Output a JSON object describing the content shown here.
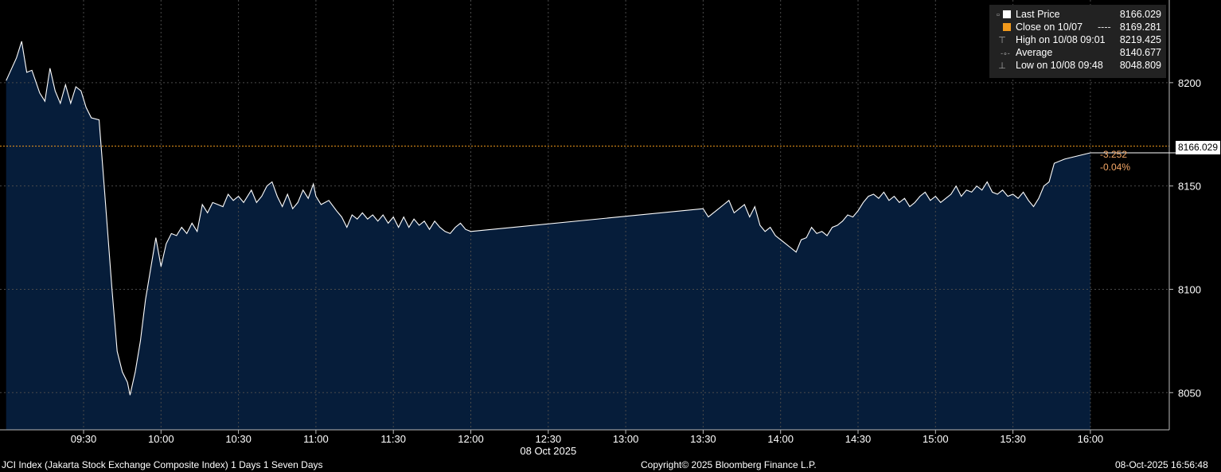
{
  "chart_data": {
    "type": "area",
    "x_labels": [
      "09:30",
      "10:00",
      "10:30",
      "11:00",
      "11:30",
      "12:00",
      "12:30",
      "13:00",
      "13:30",
      "14:00",
      "14:30",
      "15:00",
      "15:30",
      "16:00"
    ],
    "x_date_label": "08 Oct 2025",
    "y_ticks": [
      8050,
      8100,
      8150,
      8200
    ],
    "ylim": [
      8032,
      8240
    ],
    "grid": true,
    "close_reference": 8169.281,
    "series": [
      {
        "name": "Last Price",
        "color": "#ffffff",
        "fill": "#061d3a",
        "points": [
          [
            "09:00",
            8201
          ],
          [
            "09:04",
            8212
          ],
          [
            "09:06",
            8220
          ],
          [
            "09:08",
            8205
          ],
          [
            "09:10",
            8206
          ],
          [
            "09:13",
            8195
          ],
          [
            "09:15",
            8191
          ],
          [
            "09:17",
            8207
          ],
          [
            "09:19",
            8196
          ],
          [
            "09:21",
            8190
          ],
          [
            "09:23",
            8199
          ],
          [
            "09:25",
            8190
          ],
          [
            "09:27",
            8198
          ],
          [
            "09:29",
            8196
          ],
          [
            "09:31",
            8188
          ],
          [
            "09:33",
            8183
          ],
          [
            "09:36",
            8182
          ],
          [
            "09:38",
            8150
          ],
          [
            "09:41",
            8100
          ],
          [
            "09:43",
            8070
          ],
          [
            "09:45",
            8060
          ],
          [
            "09:47",
            8055
          ],
          [
            "09:48",
            8048.809
          ],
          [
            "09:50",
            8060
          ],
          [
            "09:52",
            8075
          ],
          [
            "09:54",
            8095
          ],
          [
            "09:56",
            8110
          ],
          [
            "09:58",
            8125
          ],
          [
            "10:00",
            8111
          ],
          [
            "10:02",
            8122
          ],
          [
            "10:04",
            8127
          ],
          [
            "10:06",
            8126
          ],
          [
            "10:08",
            8130
          ],
          [
            "10:10",
            8127
          ],
          [
            "10:12",
            8132
          ],
          [
            "10:14",
            8128
          ],
          [
            "10:16",
            8141
          ],
          [
            "10:18",
            8137
          ],
          [
            "10:20",
            8142
          ],
          [
            "10:22",
            8141
          ],
          [
            "10:24",
            8140
          ],
          [
            "10:26",
            8146
          ],
          [
            "10:28",
            8143
          ],
          [
            "10:30",
            8145
          ],
          [
            "10:32",
            8142
          ],
          [
            "10:35",
            8148
          ],
          [
            "10:37",
            8142
          ],
          [
            "10:39",
            8145
          ],
          [
            "10:41",
            8150
          ],
          [
            "10:43",
            8152
          ],
          [
            "10:45",
            8145
          ],
          [
            "10:47",
            8140
          ],
          [
            "10:49",
            8146
          ],
          [
            "10:51",
            8139
          ],
          [
            "10:53",
            8142
          ],
          [
            "10:55",
            8148
          ],
          [
            "10:57",
            8144
          ],
          [
            "10:59",
            8151
          ],
          [
            "11:00",
            8145
          ],
          [
            "11:02",
            8141
          ],
          [
            "11:05",
            8143
          ],
          [
            "11:08",
            8138
          ],
          [
            "11:10",
            8135
          ],
          [
            "11:12",
            8130
          ],
          [
            "11:14",
            8136
          ],
          [
            "11:16",
            8134
          ],
          [
            "11:18",
            8137
          ],
          [
            "11:20",
            8134
          ],
          [
            "11:22",
            8136
          ],
          [
            "11:24",
            8133
          ],
          [
            "11:26",
            8136
          ],
          [
            "11:28",
            8132
          ],
          [
            "11:30",
            8135
          ],
          [
            "11:32",
            8130
          ],
          [
            "11:34",
            8135
          ],
          [
            "11:36",
            8130
          ],
          [
            "11:38",
            8134
          ],
          [
            "11:40",
            8131
          ],
          [
            "11:42",
            8133
          ],
          [
            "11:44",
            8129
          ],
          [
            "11:46",
            8133
          ],
          [
            "11:48",
            8130
          ],
          [
            "11:50",
            8128
          ],
          [
            "11:52",
            8127
          ],
          [
            "11:54",
            8130
          ],
          [
            "11:56",
            8132
          ],
          [
            "11:58",
            8129
          ],
          [
            "12:00",
            8128
          ],
          [
            "13:30",
            8139
          ],
          [
            "13:32",
            8135
          ],
          [
            "13:35",
            8138
          ],
          [
            "13:38",
            8141
          ],
          [
            "13:40",
            8143
          ],
          [
            "13:42",
            8137
          ],
          [
            "13:44",
            8139
          ],
          [
            "13:46",
            8141
          ],
          [
            "13:48",
            8135
          ],
          [
            "13:50",
            8140
          ],
          [
            "13:52",
            8131
          ],
          [
            "13:54",
            8128
          ],
          [
            "13:56",
            8130
          ],
          [
            "13:58",
            8126
          ],
          [
            "14:00",
            8124
          ],
          [
            "14:02",
            8122
          ],
          [
            "14:04",
            8120
          ],
          [
            "14:06",
            8118
          ],
          [
            "14:08",
            8124
          ],
          [
            "14:10",
            8125
          ],
          [
            "14:12",
            8130
          ],
          [
            "14:14",
            8127
          ],
          [
            "14:16",
            8128
          ],
          [
            "14:18",
            8126
          ],
          [
            "14:20",
            8130
          ],
          [
            "14:22",
            8131
          ],
          [
            "14:24",
            8133
          ],
          [
            "14:26",
            8136
          ],
          [
            "14:28",
            8135
          ],
          [
            "14:30",
            8138
          ],
          [
            "14:32",
            8142
          ],
          [
            "14:34",
            8145
          ],
          [
            "14:36",
            8146
          ],
          [
            "14:38",
            8144
          ],
          [
            "14:40",
            8147
          ],
          [
            "14:42",
            8143
          ],
          [
            "14:44",
            8145
          ],
          [
            "14:46",
            8142
          ],
          [
            "14:48",
            8144
          ],
          [
            "14:50",
            8140
          ],
          [
            "14:52",
            8142
          ],
          [
            "14:54",
            8145
          ],
          [
            "14:56",
            8147
          ],
          [
            "14:58",
            8143
          ],
          [
            "15:00",
            8145
          ],
          [
            "15:02",
            8142
          ],
          [
            "15:04",
            8144
          ],
          [
            "15:06",
            8146
          ],
          [
            "15:08",
            8150
          ],
          [
            "15:10",
            8145
          ],
          [
            "15:12",
            8148
          ],
          [
            "15:14",
            8147
          ],
          [
            "15:16",
            8150
          ],
          [
            "15:18",
            8148
          ],
          [
            "15:20",
            8152
          ],
          [
            "15:22",
            8147
          ],
          [
            "15:24",
            8146
          ],
          [
            "15:26",
            8148
          ],
          [
            "15:28",
            8145
          ],
          [
            "15:30",
            8146
          ],
          [
            "15:32",
            8144
          ],
          [
            "15:34",
            8147
          ],
          [
            "15:36",
            8143
          ],
          [
            "15:38",
            8140
          ],
          [
            "15:40",
            8144
          ],
          [
            "15:42",
            8150
          ],
          [
            "15:44",
            8152
          ],
          [
            "15:46",
            8161
          ],
          [
            "15:50",
            8163
          ],
          [
            "16:00",
            8166.029
          ]
        ]
      }
    ],
    "legend": [
      {
        "marker": "▫",
        "swatch": "#ffffff",
        "label": "Last Price",
        "dash": "",
        "value": "8166.029"
      },
      {
        "marker": "",
        "swatch": "#f29a1c",
        "label": "Close on 10/07",
        "dash": "----",
        "value": "8169.281"
      },
      {
        "marker": "⊤",
        "swatch": "",
        "label": "High on 10/08 09:01",
        "dash": "",
        "value": "8219.425"
      },
      {
        "marker": "-∘-",
        "swatch": "",
        "label": "Average",
        "dash": "",
        "value": "8140.677"
      },
      {
        "marker": "⊥",
        "swatch": "",
        "label": "Low on 10/08 09:48",
        "dash": "",
        "value": "8048.809"
      }
    ],
    "last_price_tag": "8166.029",
    "change_abs": "-3.252",
    "change_pct": "-0.04%"
  },
  "footer": {
    "left": "JCI Index (Jakarta Stock Exchange Composite Index) 1 Days 1 Seven Days",
    "center": "Copyright© 2025 Bloomberg Finance L.P.",
    "right": "08-Oct-2025 16:56:48"
  }
}
